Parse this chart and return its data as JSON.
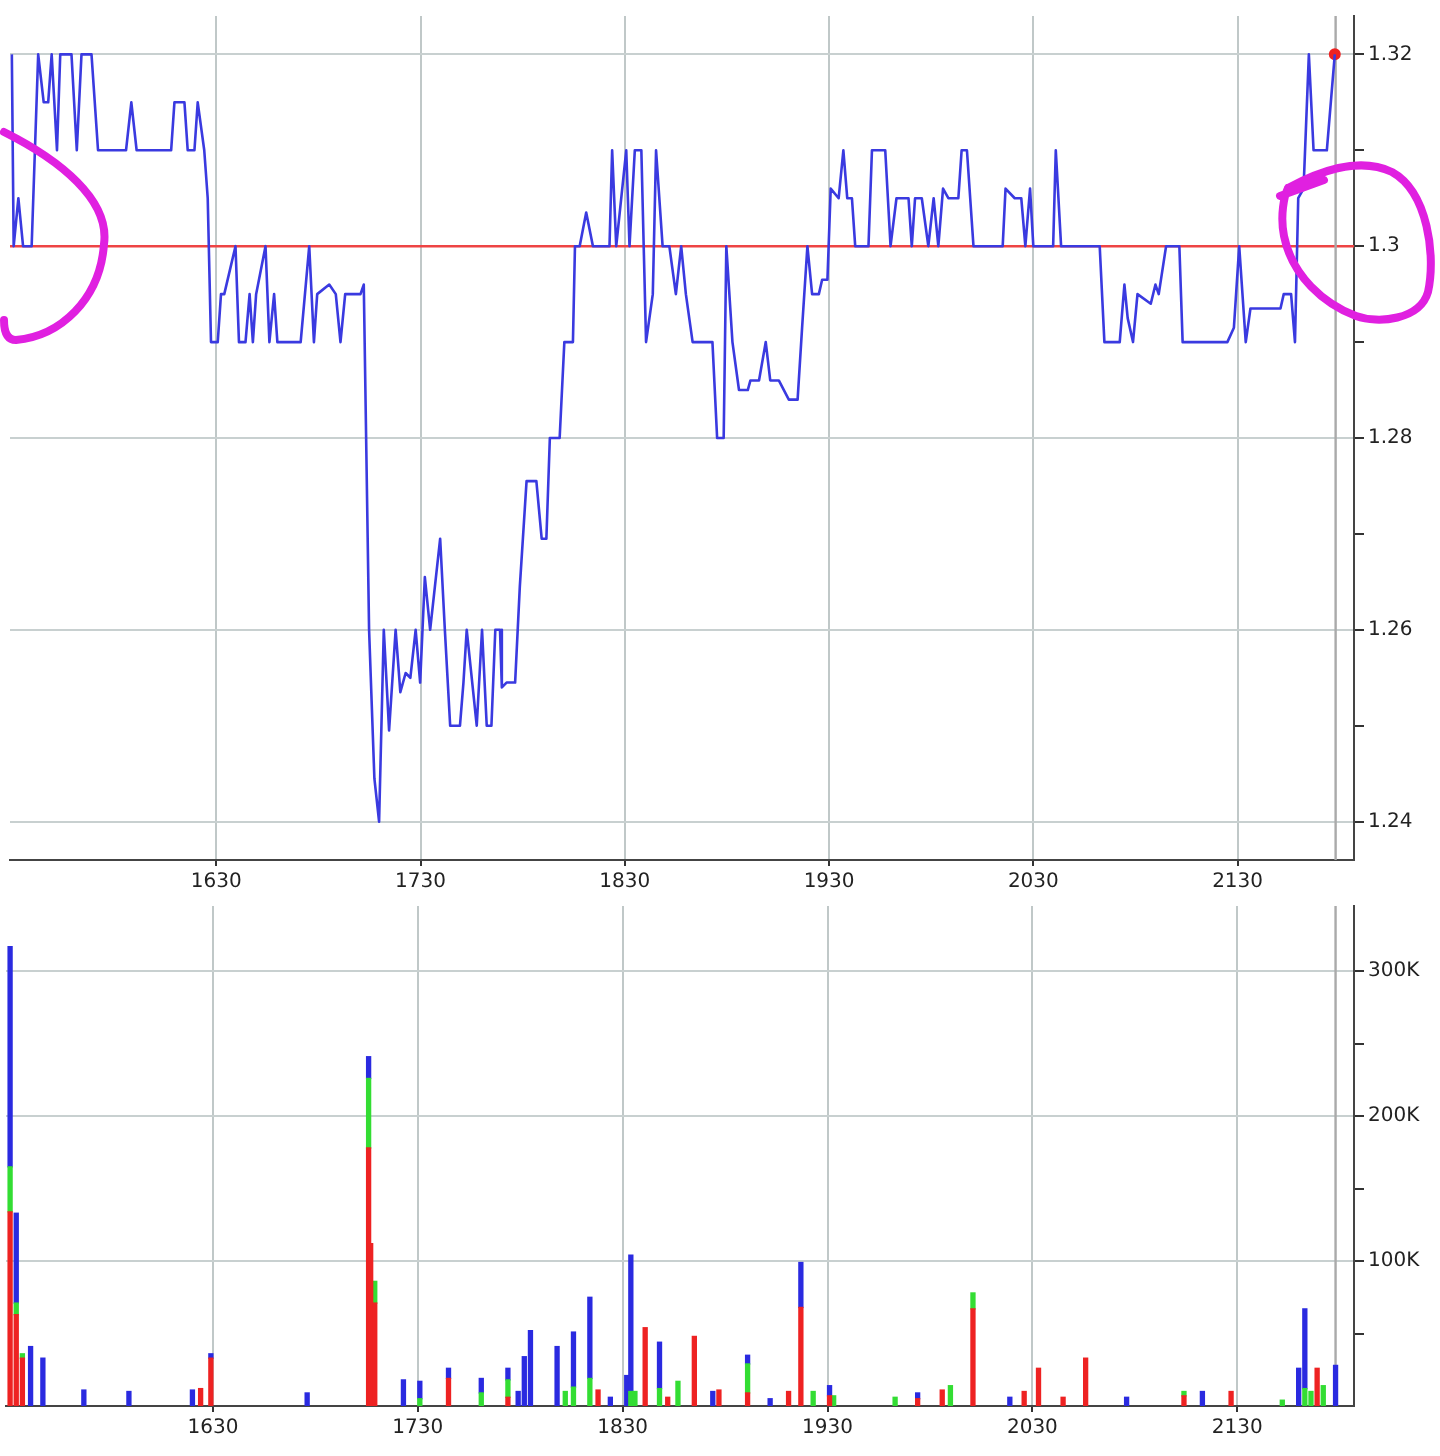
{
  "chart_data": [
    {
      "type": "line",
      "x": [
        1529.9,
        1530.8,
        1533.1,
        1535.4,
        1539.6,
        1542.8,
        1545.5,
        1547.7,
        1549.4,
        1552,
        1553.6,
        1559.1,
        1561.7,
        1564,
        1568.9,
        1572.1,
        1581.9,
        1585.8,
        1588.4,
        1591,
        1607.9,
        1609.5,
        1614.4,
        1616,
        1619.3,
        1620.9,
        1624.1,
        1625.8,
        1627.4,
        1630.7,
        1632.3,
        1633.9,
        1639.4,
        1641.1,
        1644.3,
        1646.3,
        1647.9,
        1649.5,
        1654.1,
        1656,
        1658.3,
        1659.9,
        1671.3,
        1675.5,
        1677.8,
        1679.4,
        1685.3,
        1688.5,
        1690.8,
        1693.1,
        1700.6,
        1702.2,
        1704.8,
        1707.4,
        1709.7,
        1712,
        1714.6,
        1717.8,
        1720.1,
        1722.7,
        1725,
        1727.6,
        1729.8,
        1732.1,
        1734.7,
        1739.6,
        1741.9,
        1744.5,
        1749.3,
        1751,
        1752.6,
        1757.5,
        1760.1,
        1762.4,
        1764.7,
        1766.6,
        1768.9,
        1769.8,
        1772.1,
        1776.3,
        1778.6,
        1781.9,
        1786.7,
        1789.3,
        1791.6,
        1793.3,
        1798.1,
        1800.4,
        1804.6,
        1805.6,
        1807.9,
        1811.1,
        1814.4,
        1822.5,
        1823.8,
        1825.8,
        1830.7,
        1832.3,
        1834.9,
        1838.1,
        1840.4,
        1843.7,
        1845.3,
        1848.5,
        1851.8,
        1855,
        1857.6,
        1859.9,
        1863.2,
        1872.9,
        1875.2,
        1878.4,
        1879.7,
        1882.7,
        1885.9,
        1890.2,
        1891.5,
        1895.7,
        1899,
        1901.2,
        1905.4,
        1910.3,
        1914.6,
        1916.8,
        1919.4,
        1921.7,
        1925,
        1926.6,
        1929.2,
        1930.8,
        1934.7,
        1937,
        1938.9,
        1941.2,
        1942.8,
        1949.3,
        1951,
        1957.5,
        1960.1,
        1963,
        1968.9,
        1970.5,
        1972.1,
        1975.4,
        1978.6,
        1981.2,
        1983.5,
        1985.8,
        1988.4,
        1993.3,
        1994.9,
        1997.5,
        2000.7,
        2015,
        2016.4,
        2020.9,
        2024.1,
        2026.1,
        2028.4,
        2030,
        2039.7,
        2041,
        2043.6,
        2062.5,
        2064.8,
        2072.3,
        2074.6,
        2076.2,
        2078.8,
        2081,
        2087.5,
        2089.8,
        2091.4,
        2095,
        2101.5,
        2103.1,
        2125,
        2128.2,
        2130.8,
        2134,
        2136.3,
        2151,
        2152.6,
        2156.2,
        2158.1,
        2159.7,
        2162.3,
        2164.9,
        2167.2,
        2173.7,
        2177.6
      ],
      "series": [
        {
          "color": "#3a3ae0",
          "values": [
            1.32,
            1.3,
            1.305,
            1.3,
            1.3,
            1.32,
            1.315,
            1.315,
            1.32,
            1.31,
            1.32,
            1.32,
            1.31,
            1.32,
            1.32,
            1.31,
            1.31,
            1.31,
            1.315,
            1.31,
            1.31,
            1.315,
            1.315,
            1.31,
            1.31,
            1.315,
            1.31,
            1.305,
            1.29,
            1.29,
            1.295,
            1.295,
            1.3,
            1.29,
            1.29,
            1.295,
            1.29,
            1.295,
            1.3,
            1.29,
            1.295,
            1.29,
            1.29,
            1.3,
            1.29,
            1.295,
            1.296,
            1.295,
            1.29,
            1.295,
            1.295,
            1.296,
            1.26,
            1.2445,
            1.24,
            1.26,
            1.2495,
            1.26,
            1.2535,
            1.2555,
            1.255,
            1.26,
            1.2545,
            1.2655,
            1.26,
            1.2695,
            1.26,
            1.25,
            1.25,
            1.2545,
            1.26,
            1.25,
            1.26,
            1.25,
            1.25,
            1.26,
            1.26,
            1.254,
            1.2545,
            1.2545,
            1.2645,
            1.2755,
            1.2755,
            1.2695,
            1.2695,
            1.28,
            1.28,
            1.29,
            1.29,
            1.3,
            1.3,
            1.3035,
            1.3,
            1.3,
            1.31,
            1.3,
            1.31,
            1.3,
            1.31,
            1.31,
            1.29,
            1.295,
            1.31,
            1.3,
            1.3,
            1.295,
            1.3,
            1.295,
            1.29,
            1.29,
            1.28,
            1.28,
            1.3,
            1.29,
            1.285,
            1.285,
            1.286,
            1.286,
            1.29,
            1.286,
            1.286,
            1.284,
            1.284,
            1.2915,
            1.3,
            1.295,
            1.295,
            1.2965,
            1.2965,
            1.306,
            1.305,
            1.31,
            1.305,
            1.305,
            1.3,
            1.3,
            1.31,
            1.31,
            1.3,
            1.305,
            1.305,
            1.3,
            1.305,
            1.305,
            1.3,
            1.305,
            1.3,
            1.306,
            1.305,
            1.305,
            1.31,
            1.31,
            1.3,
            1.3,
            1.306,
            1.305,
            1.305,
            1.3,
            1.306,
            1.3,
            1.3,
            1.31,
            1.3,
            1.3,
            1.29,
            1.29,
            1.296,
            1.2925,
            1.29,
            1.295,
            1.294,
            1.296,
            1.295,
            1.3,
            1.3,
            1.29,
            1.29,
            1.2915,
            1.3,
            1.29,
            1.2935,
            1.2935,
            1.295,
            1.295,
            1.29,
            1.305,
            1.306,
            1.32,
            1.31,
            1.31,
            1.32
          ]
        },
        {
          "type": "scatter",
          "marker": "circle",
          "x": [
            2177.6
          ],
          "color": "#ee2222",
          "values": [
            1.32
          ]
        }
      ],
      "xlim": [
        1529,
        2187
      ],
      "xticks": [
        1630,
        1730,
        1830,
        1930,
        2030,
        2130
      ],
      "ylim": [
        1.236,
        1.324
      ],
      "yticks": [
        1.24,
        {
          "value": 1.25,
          "label": null
        },
        1.26,
        {
          "value": 1.27,
          "label": null
        },
        1.28,
        {
          "value": 1.29,
          "label": null
        },
        1.3,
        {
          "value": 1.31,
          "label": null
        },
        1.32
      ],
      "ref_lines": [
        {
          "axis": "y",
          "value": 1.3,
          "color": "#ee4444"
        },
        {
          "axis": "x",
          "value": 2178,
          "color": "#aaaaaa"
        }
      ],
      "grid": true,
      "legend": false,
      "marker": "none"
    },
    {
      "type": "bar",
      "stacked": true,
      "x": [
        1531,
        1534,
        1537,
        1541,
        1547,
        1567,
        1589,
        1620,
        1624,
        1629,
        1676,
        1706,
        1707,
        1709,
        1723,
        1731,
        1745,
        1761,
        1774,
        1779,
        1782,
        1785,
        1798,
        1802,
        1806,
        1814,
        1818,
        1824,
        1832,
        1834,
        1836,
        1841,
        1848,
        1852,
        1857,
        1865,
        1874,
        1877,
        1891,
        1902,
        1911,
        1917,
        1923,
        1931,
        1933,
        1963,
        1974,
        1986,
        1990,
        2001,
        2019,
        2026,
        2033,
        2045,
        2056,
        2076,
        2104,
        2113,
        2127,
        2152,
        2159,
        2160,
        2163,
        2166,
        2169,
        2172,
        2178
      ],
      "series": [
        {
          "color": "#ee2222",
          "values": [
            134000,
            63000,
            33000,
            null,
            null,
            null,
            null,
            null,
            12000,
            33000,
            null,
            178000,
            112000,
            71000,
            null,
            null,
            19000,
            null,
            6000,
            null,
            null,
            null,
            null,
            null,
            null,
            null,
            11000,
            null,
            null,
            null,
            null,
            54000,
            null,
            6000,
            null,
            48000,
            null,
            11000,
            9000,
            null,
            10000,
            68000,
            null,
            7000,
            null,
            null,
            5000,
            11000,
            null,
            67000,
            null,
            10000,
            26000,
            6000,
            33000,
            null,
            7000,
            null,
            10000,
            null,
            null,
            null,
            null,
            null,
            26000,
            null,
            null
          ]
        },
        {
          "color": "#33dd33",
          "values": [
            31000,
            8000,
            3000,
            null,
            null,
            null,
            null,
            null,
            null,
            null,
            null,
            48000,
            null,
            15000,
            null,
            5000,
            null,
            9000,
            12000,
            null,
            null,
            null,
            null,
            10000,
            13000,
            19000,
            null,
            null,
            null,
            10000,
            10000,
            null,
            12000,
            null,
            17000,
            null,
            null,
            null,
            20000,
            null,
            null,
            null,
            10000,
            null,
            7000,
            6000,
            null,
            null,
            14000,
            11000,
            null,
            null,
            null,
            null,
            null,
            null,
            3000,
            null,
            null,
            4000,
            null,
            null,
            12000,
            10000,
            null,
            14000,
            null
          ]
        },
        {
          "color": "#2a2ae0",
          "values": [
            152000,
            62000,
            null,
            41000,
            33000,
            11000,
            10000,
            11000,
            null,
            3000,
            9000,
            15000,
            null,
            null,
            18000,
            12000,
            7000,
            10000,
            8000,
            10000,
            34000,
            52000,
            41000,
            null,
            38000,
            56000,
            null,
            6000,
            21000,
            94000,
            null,
            null,
            32000,
            null,
            null,
            null,
            10000,
            null,
            6000,
            5000,
            null,
            31000,
            null,
            7000,
            null,
            null,
            4000,
            null,
            null,
            null,
            6000,
            null,
            null,
            null,
            null,
            6000,
            null,
            10000,
            null,
            null,
            null,
            26000,
            55000,
            null,
            null,
            null,
            28000
          ]
        }
      ],
      "xlim": [
        1529,
        2187
      ],
      "xticks": [
        1630,
        1730,
        1830,
        1930,
        2030,
        2130
      ],
      "ylim": [
        0,
        345000
      ],
      "yticks": [
        {
          "value": 50000,
          "label": null
        },
        {
          "value": 100000,
          "label": "100K"
        },
        {
          "value": 150000,
          "label": null
        },
        {
          "value": 200000,
          "label": "200K"
        },
        {
          "value": 250000,
          "label": null
        },
        {
          "value": 300000,
          "label": "300K"
        }
      ],
      "ref_lines": [
        {
          "axis": "x",
          "value": 2178,
          "color": "#aaaaaa"
        }
      ],
      "grid": true,
      "legend": false
    }
  ]
}
